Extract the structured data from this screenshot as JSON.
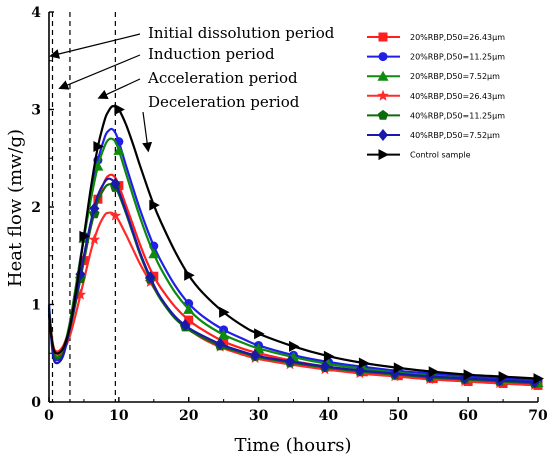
{
  "chart_data": {
    "type": "line",
    "xlabel": "Time (hours)",
    "ylabel": "Heat flow (mw/g)",
    "xlim": [
      0,
      70
    ],
    "ylim": [
      0,
      4
    ],
    "xticks": [
      0,
      10,
      20,
      30,
      40,
      50,
      60,
      70
    ],
    "yticks": [
      0,
      1,
      2,
      3,
      4
    ],
    "grid": false,
    "legend_position": "top-right",
    "period_lines_x": [
      0.5,
      3,
      9.5
    ],
    "annotations": [
      {
        "text": "Initial dissolution period",
        "target": [
          0.3,
          3.55
        ]
      },
      {
        "text": "Induction period",
        "target": [
          1.6,
          3.22
        ]
      },
      {
        "text": "Acceleration period",
        "target": [
          7.2,
          3.12
        ]
      },
      {
        "text": "Deceleration period",
        "target": [
          14.2,
          2.58
        ]
      }
    ],
    "series": [
      {
        "name": "20%RBP,D50=26.43μm",
        "color": "#ff1f1f",
        "marker": "square",
        "x": [
          0,
          0.5,
          1,
          2,
          3,
          4,
          5,
          6,
          7,
          8,
          8.5,
          9,
          9.5,
          10,
          11,
          12,
          13,
          14,
          15,
          16,
          18,
          20,
          22,
          25,
          28,
          30,
          35,
          40,
          45,
          50,
          55,
          60,
          65,
          70
        ],
        "y": [
          0.95,
          0.62,
          0.52,
          0.57,
          0.78,
          1.1,
          1.45,
          1.8,
          2.08,
          2.27,
          2.32,
          2.33,
          2.3,
          2.22,
          2.02,
          1.82,
          1.62,
          1.44,
          1.29,
          1.17,
          0.98,
          0.84,
          0.74,
          0.62,
          0.54,
          0.5,
          0.42,
          0.36,
          0.31,
          0.27,
          0.24,
          0.21,
          0.19,
          0.17
        ]
      },
      {
        "name": "20%RBP,D50=11.25μm",
        "color": "#1f1fe6",
        "marker": "circle",
        "x": [
          0,
          0.5,
          1,
          2,
          3,
          4,
          5,
          6,
          7,
          8,
          8.5,
          9,
          9.5,
          10,
          11,
          12,
          13,
          14,
          15,
          16,
          18,
          20,
          22,
          25,
          28,
          30,
          35,
          40,
          45,
          50,
          55,
          60,
          65,
          70
        ],
        "y": [
          1.0,
          0.55,
          0.43,
          0.5,
          0.82,
          1.25,
          1.7,
          2.12,
          2.48,
          2.72,
          2.78,
          2.8,
          2.76,
          2.67,
          2.43,
          2.2,
          1.98,
          1.78,
          1.6,
          1.45,
          1.2,
          1.01,
          0.88,
          0.74,
          0.64,
          0.58,
          0.48,
          0.41,
          0.36,
          0.32,
          0.29,
          0.26,
          0.24,
          0.22
        ]
      },
      {
        "name": "20%RBP,D50=7.52μm",
        "color": "#0e8a0e",
        "marker": "triangle-up",
        "x": [
          0,
          0.5,
          1,
          2,
          3,
          4,
          5,
          6,
          7,
          8,
          8.5,
          9,
          9.5,
          10,
          11,
          12,
          13,
          14,
          15,
          16,
          18,
          20,
          22,
          25,
          28,
          30,
          35,
          40,
          45,
          50,
          55,
          60,
          65,
          70
        ],
        "y": [
          0.98,
          0.58,
          0.47,
          0.53,
          0.82,
          1.25,
          1.68,
          2.08,
          2.42,
          2.63,
          2.69,
          2.7,
          2.67,
          2.58,
          2.35,
          2.12,
          1.9,
          1.7,
          1.52,
          1.37,
          1.13,
          0.95,
          0.82,
          0.69,
          0.6,
          0.55,
          0.46,
          0.39,
          0.34,
          0.3,
          0.27,
          0.24,
          0.22,
          0.2
        ]
      },
      {
        "name": "40%RBP,D50=26.43μm",
        "color": "#ff2a2a",
        "marker": "star",
        "x": [
          0,
          0.5,
          1,
          2,
          3,
          4,
          5,
          6,
          7,
          8,
          8.5,
          9,
          9.5,
          10,
          11,
          12,
          13,
          14,
          15,
          16,
          18,
          20,
          22,
          25,
          28,
          30,
          35,
          40,
          45,
          50,
          55,
          60,
          65,
          70
        ],
        "y": [
          0.9,
          0.6,
          0.5,
          0.52,
          0.68,
          0.95,
          1.25,
          1.55,
          1.78,
          1.92,
          1.94,
          1.94,
          1.91,
          1.86,
          1.72,
          1.57,
          1.42,
          1.29,
          1.17,
          1.06,
          0.88,
          0.75,
          0.65,
          0.55,
          0.48,
          0.44,
          0.38,
          0.33,
          0.29,
          0.26,
          0.23,
          0.21,
          0.19,
          0.17
        ]
      },
      {
        "name": "40%RBP,D50=11.25μm",
        "color": "#0c6b0c",
        "marker": "pentagon",
        "x": [
          0,
          0.5,
          1,
          2,
          3,
          4,
          5,
          6,
          7,
          8,
          8.5,
          9,
          9.5,
          10,
          11,
          12,
          13,
          14,
          15,
          16,
          18,
          20,
          22,
          25,
          28,
          30,
          35,
          40,
          45,
          50,
          55,
          60,
          65,
          70
        ],
        "y": [
          0.95,
          0.56,
          0.45,
          0.5,
          0.75,
          1.08,
          1.45,
          1.8,
          2.06,
          2.2,
          2.23,
          2.23,
          2.2,
          2.13,
          1.94,
          1.73,
          1.52,
          1.34,
          1.18,
          1.05,
          0.86,
          0.74,
          0.66,
          0.56,
          0.5,
          0.46,
          0.4,
          0.35,
          0.31,
          0.28,
          0.25,
          0.23,
          0.21,
          0.19
        ]
      },
      {
        "name": "40%RBP,D50=7.52μm",
        "color": "#1a1aa8",
        "marker": "diamond",
        "x": [
          0,
          0.5,
          1,
          2,
          3,
          4,
          5,
          6,
          7,
          8,
          8.5,
          9,
          9.5,
          10,
          11,
          12,
          13,
          14,
          15,
          16,
          18,
          20,
          22,
          25,
          28,
          30,
          35,
          40,
          45,
          50,
          55,
          60,
          65,
          70
        ],
        "y": [
          0.97,
          0.52,
          0.4,
          0.47,
          0.76,
          1.12,
          1.5,
          1.85,
          2.12,
          2.26,
          2.29,
          2.28,
          2.24,
          2.16,
          1.96,
          1.75,
          1.54,
          1.36,
          1.2,
          1.07,
          0.88,
          0.76,
          0.68,
          0.58,
          0.51,
          0.47,
          0.41,
          0.36,
          0.32,
          0.29,
          0.26,
          0.24,
          0.22,
          0.2
        ]
      },
      {
        "name": "Control sample",
        "color": "#000000",
        "marker": "triangle-right",
        "x": [
          0,
          0.5,
          1,
          2,
          3,
          4,
          5,
          6,
          7,
          8,
          8.5,
          9,
          9.5,
          10,
          11,
          12,
          13,
          14,
          15,
          16,
          18,
          20,
          22,
          25,
          28,
          30,
          35,
          40,
          45,
          50,
          55,
          60,
          65,
          70
        ],
        "y": [
          0.9,
          0.6,
          0.5,
          0.55,
          0.78,
          1.2,
          1.7,
          2.2,
          2.62,
          2.9,
          2.98,
          3.03,
          3.03,
          3.0,
          2.85,
          2.65,
          2.43,
          2.22,
          2.02,
          1.85,
          1.55,
          1.3,
          1.12,
          0.92,
          0.77,
          0.7,
          0.57,
          0.47,
          0.4,
          0.35,
          0.31,
          0.28,
          0.26,
          0.24
        ]
      }
    ]
  }
}
